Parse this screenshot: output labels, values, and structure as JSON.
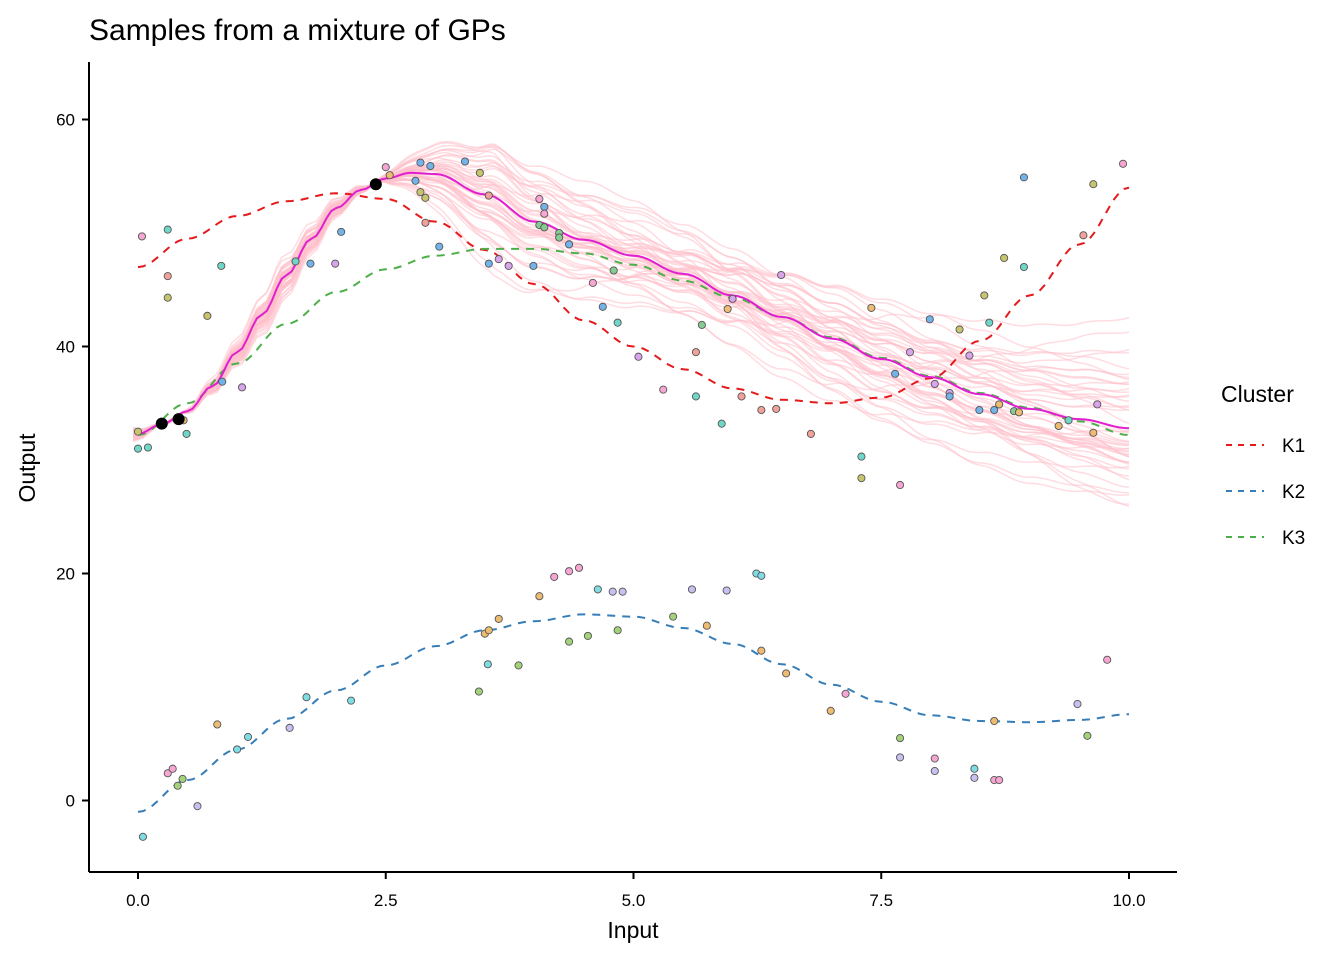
{
  "chart_data": {
    "type": "line",
    "title": "Samples from a mixture of GPs",
    "xlabel": "Input",
    "ylabel": "Output",
    "xlim": [
      -0.5,
      10.5
    ],
    "ylim": [
      -6.3,
      65
    ],
    "xticks": [
      0,
      2.5,
      5,
      7.5,
      10
    ],
    "xtick_labels": [
      "0.0",
      "2.5",
      "5.0",
      "7.5",
      "10.0"
    ],
    "yticks": [
      0,
      20,
      40,
      60
    ],
    "ytick_labels": [
      "0",
      "20",
      "40",
      "60"
    ],
    "grid": false,
    "legend": {
      "title": "Cluster",
      "placement": "right",
      "entries": [
        {
          "label": "K1",
          "color": "#E41A1C",
          "style": "dashed"
        },
        {
          "label": "K2",
          "color": "#377EB8",
          "style": "dashed"
        },
        {
          "label": "K3",
          "color": "#4DAF4A",
          "style": "dashed"
        }
      ]
    },
    "cluster_means": [
      {
        "name": "K1",
        "color": "#E41A1C",
        "x": [
          0,
          0.5,
          1,
          1.5,
          2,
          2.5,
          3,
          3.5,
          4,
          4.5,
          5,
          5.5,
          6,
          6.5,
          7,
          7.5,
          8,
          8.5,
          9,
          9.5,
          10
        ],
        "y": [
          47.0,
          49.5,
          51.5,
          52.8,
          53.5,
          53.0,
          51.0,
          48.5,
          45.5,
          42.3,
          40.0,
          38.0,
          36.3,
          35.3,
          35.0,
          35.5,
          37.2,
          40.5,
          44.5,
          49.0,
          54.0
        ]
      },
      {
        "name": "K2",
        "color": "#377EB8",
        "x": [
          0,
          0.5,
          1,
          1.5,
          2,
          2.5,
          3,
          3.5,
          4,
          4.5,
          5,
          5.5,
          6,
          6.5,
          7,
          7.5,
          8,
          8.5,
          9,
          9.5,
          10
        ],
        "y": [
          -1.0,
          1.8,
          4.5,
          7.2,
          9.7,
          11.9,
          13.6,
          15.0,
          15.8,
          16.4,
          16.2,
          15.2,
          13.8,
          12.0,
          10.2,
          8.7,
          7.5,
          7.0,
          6.9,
          7.1,
          7.6
        ]
      },
      {
        "name": "K3",
        "color": "#4DAF4A",
        "x": [
          0,
          0.5,
          1,
          1.5,
          2,
          2.5,
          3,
          3.5,
          4,
          4.5,
          5,
          5.5,
          6,
          6.5,
          7,
          7.5,
          8,
          8.5,
          9,
          9.5,
          10
        ],
        "y": [
          32.2,
          35.0,
          38.5,
          42.0,
          44.8,
          46.8,
          48.0,
          48.6,
          48.6,
          48.2,
          47.2,
          45.8,
          44.3,
          42.6,
          40.8,
          39.0,
          37.4,
          35.9,
          34.6,
          33.4,
          32.2
        ]
      }
    ],
    "prediction_mean": {
      "color": "#E020D0",
      "x": [
        0,
        0.25,
        0.5,
        0.75,
        1,
        1.25,
        1.5,
        1.75,
        2,
        2.25,
        2.5,
        2.75,
        3,
        3.5,
        4,
        4.5,
        5,
        5.5,
        6,
        6.5,
        7,
        7.5,
        8,
        8.5,
        9,
        9.5,
        10
      ],
      "y": [
        32.3,
        33.2,
        34.3,
        36.5,
        39.5,
        42.8,
        46.3,
        49.5,
        52.2,
        53.8,
        54.8,
        55.3,
        55.2,
        53.4,
        51.0,
        49.4,
        48.0,
        46.4,
        44.5,
        42.6,
        40.7,
        38.9,
        37.3,
        35.8,
        34.5,
        33.6,
        32.8
      ]
    },
    "gp_samples": {
      "count": 50,
      "color": "#FFC0CB"
    },
    "observed_points": {
      "color": "#000000",
      "points": [
        [
          0.24,
          33.2
        ],
        [
          0.41,
          33.6
        ],
        [
          2.4,
          54.3
        ]
      ]
    },
    "scatter_palette": {
      "pink": "#F7A6D4",
      "teal": "#6FD6C8",
      "salmon": "#F2A19A",
      "olive": "#C8C46E",
      "blue": "#72B4EA",
      "violet": "#D9A4EC",
      "orange": "#EDBB72",
      "green": "#86CC92",
      "lavender": "#C9C0F2",
      "lime": "#A3D27A",
      "cyan": "#7FDCE2"
    },
    "scatter_points": [
      [
        0.04,
        49.7,
        "pink"
      ],
      [
        0.3,
        50.3,
        "teal"
      ],
      [
        0.3,
        46.2,
        "salmon"
      ],
      [
        0.3,
        44.3,
        "olive"
      ],
      [
        0.84,
        47.1,
        "teal"
      ],
      [
        0.7,
        42.7,
        "olive"
      ],
      [
        1.59,
        47.5,
        "teal"
      ],
      [
        1.74,
        47.3,
        "blue"
      ],
      [
        1.99,
        47.3,
        "violet"
      ],
      [
        2.05,
        50.1,
        "blue"
      ],
      [
        0.85,
        36.9,
        "blue"
      ],
      [
        1.05,
        36.4,
        "violet"
      ],
      [
        0.0,
        31.0,
        "teal"
      ],
      [
        0.1,
        31.1,
        "teal"
      ],
      [
        0.49,
        32.3,
        "teal"
      ],
      [
        0.0,
        32.5,
        "olive"
      ],
      [
        0.24,
        33.1,
        "teal"
      ],
      [
        0.46,
        33.5,
        "orange"
      ],
      [
        2.5,
        55.8,
        "pink"
      ],
      [
        2.54,
        55.1,
        "orange"
      ],
      [
        2.85,
        56.2,
        "blue"
      ],
      [
        2.95,
        55.9,
        "blue"
      ],
      [
        3.3,
        56.3,
        "blue"
      ],
      [
        3.45,
        55.3,
        "olive"
      ],
      [
        2.8,
        54.6,
        "blue"
      ],
      [
        2.85,
        53.6,
        "olive"
      ],
      [
        2.9,
        53.1,
        "olive"
      ],
      [
        2.9,
        50.9,
        "salmon"
      ],
      [
        3.54,
        53.3,
        "salmon"
      ],
      [
        3.04,
        48.8,
        "blue"
      ],
      [
        4.05,
        53.0,
        "pink"
      ],
      [
        4.1,
        52.3,
        "blue"
      ],
      [
        4.1,
        51.7,
        "pink"
      ],
      [
        4.05,
        50.7,
        "green"
      ],
      [
        4.1,
        50.5,
        "green"
      ],
      [
        4.25,
        50.0,
        "green"
      ],
      [
        4.25,
        49.6,
        "green"
      ],
      [
        4.35,
        49.0,
        "blue"
      ],
      [
        3.54,
        47.3,
        "blue"
      ],
      [
        3.64,
        47.7,
        "violet"
      ],
      [
        3.74,
        47.1,
        "violet"
      ],
      [
        3.99,
        47.1,
        "blue"
      ],
      [
        4.59,
        45.6,
        "pink"
      ],
      [
        4.8,
        46.7,
        "green"
      ],
      [
        4.69,
        43.5,
        "blue"
      ],
      [
        4.84,
        42.1,
        "teal"
      ],
      [
        5.69,
        41.9,
        "green"
      ],
      [
        5.05,
        39.1,
        "violet"
      ],
      [
        5.63,
        39.5,
        "salmon"
      ],
      [
        5.3,
        36.2,
        "pink"
      ],
      [
        5.63,
        35.6,
        "teal"
      ],
      [
        5.89,
        33.2,
        "teal"
      ],
      [
        9.94,
        56.1,
        "pink"
      ],
      [
        8.94,
        54.9,
        "blue"
      ],
      [
        9.64,
        54.3,
        "olive"
      ],
      [
        9.54,
        49.8,
        "salmon"
      ],
      [
        8.74,
        47.8,
        "olive"
      ],
      [
        8.94,
        47.0,
        "teal"
      ],
      [
        6.49,
        46.3,
        "violet"
      ],
      [
        8.54,
        44.5,
        "olive"
      ],
      [
        7.4,
        43.4,
        "orange"
      ],
      [
        7.99,
        42.4,
        "blue"
      ],
      [
        8.59,
        42.1,
        "teal"
      ],
      [
        8.29,
        41.5,
        "olive"
      ],
      [
        7.79,
        39.5,
        "violet"
      ],
      [
        8.39,
        39.2,
        "violet"
      ],
      [
        7.64,
        37.6,
        "blue"
      ],
      [
        8.04,
        36.7,
        "violet"
      ],
      [
        8.19,
        35.9,
        "violet"
      ],
      [
        8.19,
        35.6,
        "blue"
      ],
      [
        8.69,
        34.9,
        "orange"
      ],
      [
        8.49,
        34.4,
        "blue"
      ],
      [
        8.64,
        34.4,
        "blue"
      ],
      [
        8.84,
        34.3,
        "green"
      ],
      [
        8.89,
        34.2,
        "orange"
      ],
      [
        9.68,
        34.9,
        "violet"
      ],
      [
        9.29,
        33.0,
        "orange"
      ],
      [
        9.39,
        33.5,
        "teal"
      ],
      [
        9.64,
        32.4,
        "orange"
      ],
      [
        6.09,
        35.6,
        "salmon"
      ],
      [
        6.29,
        34.4,
        "salmon"
      ],
      [
        6.44,
        34.5,
        "salmon"
      ],
      [
        6.79,
        32.3,
        "salmon"
      ],
      [
        7.3,
        30.3,
        "teal"
      ],
      [
        7.3,
        28.4,
        "olive"
      ],
      [
        7.69,
        27.8,
        "pink"
      ],
      [
        6.0,
        44.2,
        "violet"
      ],
      [
        5.95,
        43.3,
        "orange"
      ],
      [
        0.05,
        -3.2,
        "cyan"
      ],
      [
        0.3,
        2.4,
        "pink"
      ],
      [
        0.35,
        2.8,
        "pink"
      ],
      [
        0.4,
        1.3,
        "lime"
      ],
      [
        0.45,
        1.9,
        "lime"
      ],
      [
        0.6,
        -0.5,
        "lavender"
      ],
      [
        0.8,
        6.7,
        "orange"
      ],
      [
        1.0,
        4.5,
        "cyan"
      ],
      [
        1.11,
        5.6,
        "cyan"
      ],
      [
        1.53,
        6.4,
        "lavender"
      ],
      [
        1.7,
        9.1,
        "cyan"
      ],
      [
        2.15,
        8.8,
        "cyan"
      ],
      [
        3.44,
        9.6,
        "lime"
      ],
      [
        3.53,
        12.0,
        "cyan"
      ],
      [
        3.84,
        11.9,
        "lime"
      ],
      [
        3.5,
        14.7,
        "orange"
      ],
      [
        3.54,
        15.0,
        "orange"
      ],
      [
        3.64,
        16.0,
        "orange"
      ],
      [
        4.05,
        18.0,
        "orange"
      ],
      [
        4.2,
        19.7,
        "pink"
      ],
      [
        4.35,
        20.2,
        "pink"
      ],
      [
        4.45,
        20.5,
        "pink"
      ],
      [
        4.64,
        18.6,
        "cyan"
      ],
      [
        4.79,
        18.4,
        "lavender"
      ],
      [
        4.89,
        18.4,
        "lavender"
      ],
      [
        5.59,
        18.6,
        "lavender"
      ],
      [
        5.94,
        18.5,
        "lavender"
      ],
      [
        6.24,
        20.0,
        "cyan"
      ],
      [
        6.29,
        19.8,
        "cyan"
      ],
      [
        4.35,
        14.0,
        "lime"
      ],
      [
        4.54,
        14.5,
        "lime"
      ],
      [
        4.84,
        15.0,
        "lime"
      ],
      [
        5.4,
        16.2,
        "lime"
      ],
      [
        5.74,
        15.4,
        "orange"
      ],
      [
        6.29,
        13.2,
        "orange"
      ],
      [
        6.54,
        11.2,
        "orange"
      ],
      [
        7.14,
        9.4,
        "pink"
      ],
      [
        6.99,
        7.9,
        "orange"
      ],
      [
        9.78,
        12.4,
        "pink"
      ],
      [
        9.48,
        8.5,
        "lavender"
      ],
      [
        9.58,
        5.7,
        "lime"
      ],
      [
        8.64,
        7.0,
        "orange"
      ],
      [
        7.69,
        5.5,
        "lime"
      ],
      [
        7.69,
        3.8,
        "lavender"
      ],
      [
        8.04,
        3.7,
        "pink"
      ],
      [
        8.04,
        2.6,
        "lavender"
      ],
      [
        8.44,
        2.8,
        "cyan"
      ],
      [
        8.44,
        2.0,
        "lavender"
      ],
      [
        8.64,
        1.8,
        "pink"
      ],
      [
        8.69,
        1.8,
        "pink"
      ]
    ]
  }
}
